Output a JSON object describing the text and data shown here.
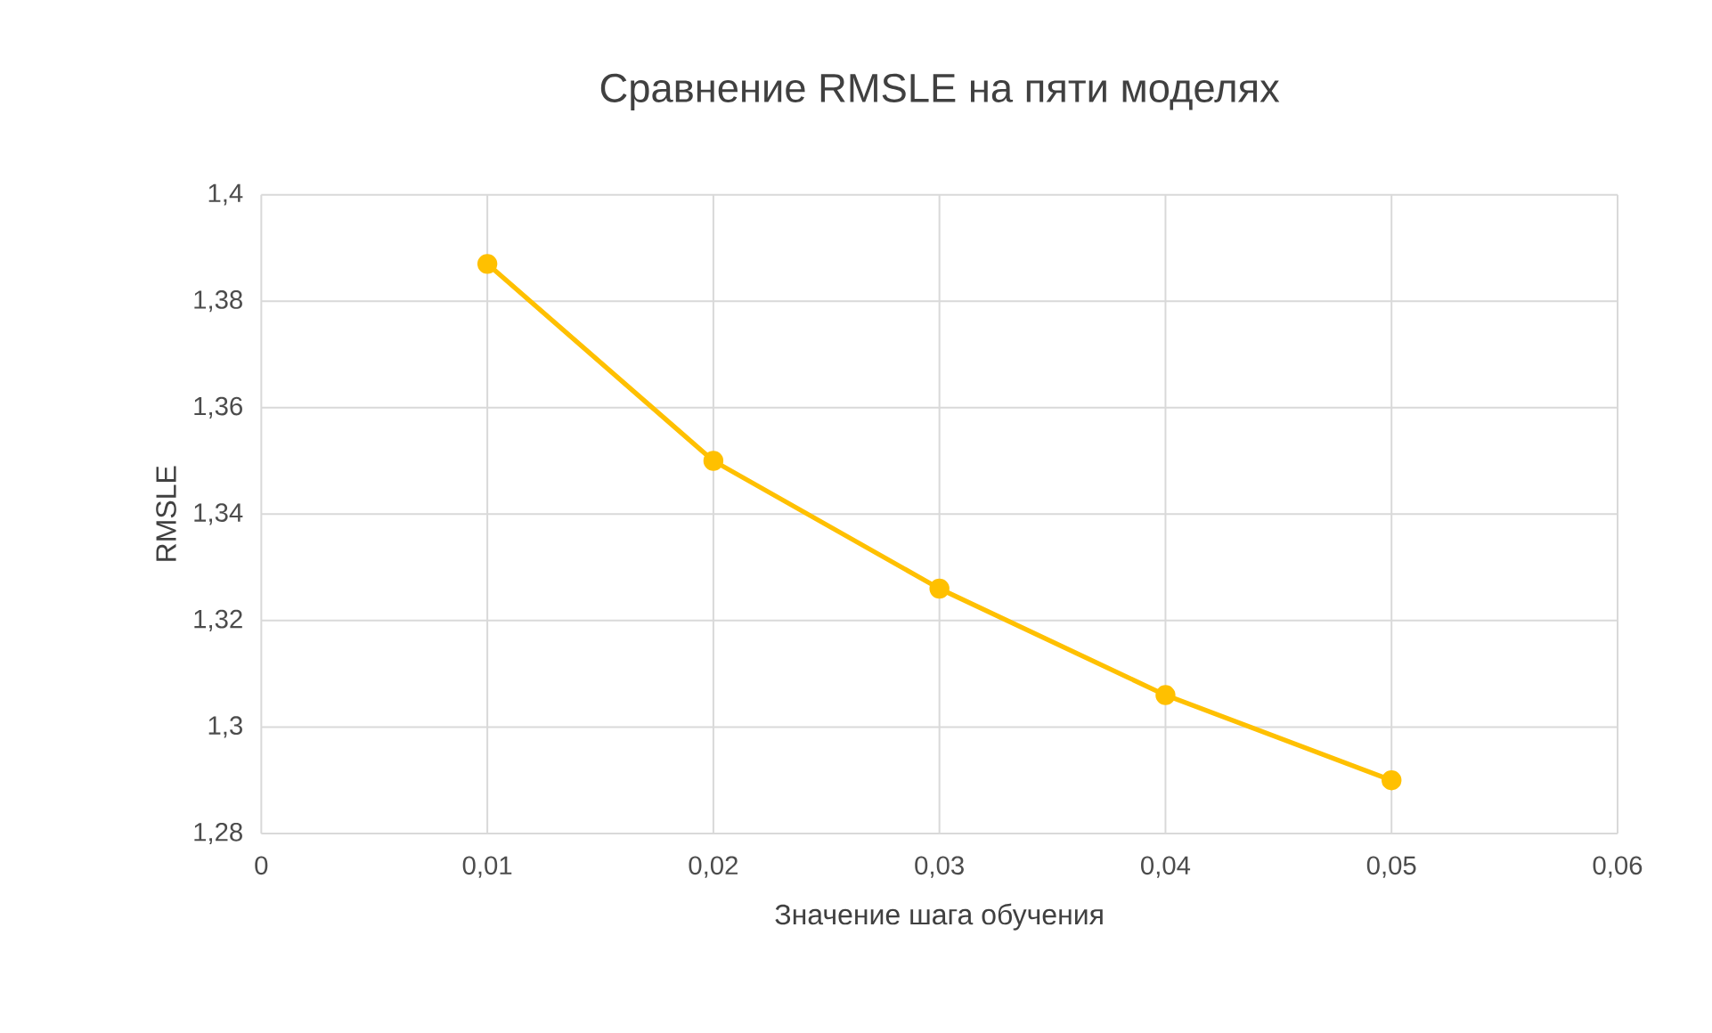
{
  "chart_data": {
    "type": "line",
    "title": "Сравнение RMSLE на пяти моделях",
    "xlabel": "Значение шага обучения",
    "ylabel": "RMSLE",
    "x": [
      0.01,
      0.02,
      0.03,
      0.04,
      0.05
    ],
    "series": [
      {
        "color": "#ffc000",
        "values": [
          1.387,
          1.35,
          1.326,
          1.306,
          1.29
        ]
      }
    ],
    "xlim": [
      0,
      0.06
    ],
    "xticks": [
      0,
      {
        "value": 0.01,
        "label": "0,01"
      },
      {
        "value": 0.02,
        "label": "0,02"
      },
      {
        "value": 0.03,
        "label": "0,03"
      },
      {
        "value": 0.04,
        "label": "0,04"
      },
      {
        "value": 0.05,
        "label": "0,05"
      },
      {
        "value": 0.06,
        "label": "0,06"
      }
    ],
    "ylim": [
      1.28,
      1.4
    ],
    "yticks": [
      {
        "value": 1.28,
        "label": "1,28"
      },
      {
        "value": 1.3,
        "label": "1,3"
      },
      {
        "value": 1.32,
        "label": "1,32"
      },
      {
        "value": 1.34,
        "label": "1,34"
      },
      {
        "value": 1.36,
        "label": "1,36"
      },
      {
        "value": 1.38,
        "label": "1,38"
      },
      {
        "value": 1.4,
        "label": "1,4"
      }
    ],
    "grid": true,
    "marker": "circle",
    "line_style": "solid"
  }
}
